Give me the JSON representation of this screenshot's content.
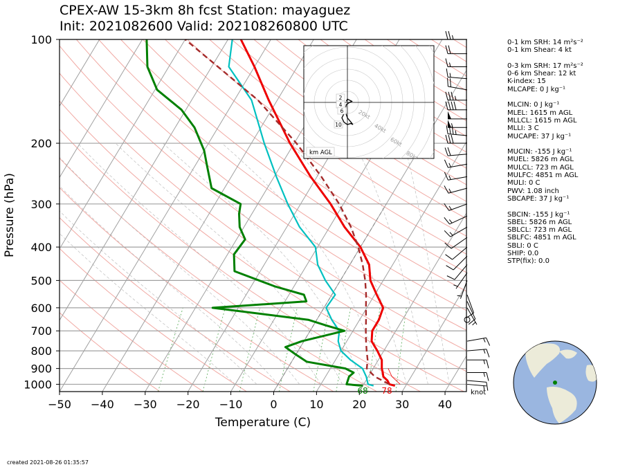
{
  "title": {
    "line1": "CPEX-AW 15-3km  8h fcst  Station: mayaguez",
    "line2": "Init: 2021082600  Valid: 202108260800 UTC"
  },
  "created": "created 2021-08-26 01:35:57",
  "stats": [
    "0-1 km SRH: 14 m²s⁻²",
    "0-1 km Shear: 4 kt",
    "",
    "0-3 km SRH: 17 m²s⁻²",
    "0-6 km Shear: 12 kt",
    "K-index: 15",
    "MLCAPE: 0 J kg⁻¹",
    "",
    "MLCIN: 0 J kg⁻¹",
    "MLEL: 1615 m AGL",
    "MLLCL: 1615 m AGL",
    "MLLI: 3 C",
    "MUCAPE: 37 J kg⁻¹",
    "",
    "MUCIN: -155 J kg⁻¹",
    "MUEL: 5826 m AGL",
    "MULCL: 723 m AGL",
    "MULFC: 4851 m AGL",
    "MULI: 0 C",
    "PWV: 1.08 inch",
    "SBCAPE: 37 J kg⁻¹",
    "",
    "SBCIN: -155 J kg⁻¹",
    "SBEL: 5826 m AGL",
    "SBLCL: 723 m AGL",
    "SBLFC: 4851 m AGL",
    "SBLI: 0 C",
    "SHIP: 0.0",
    "STP(fix): 0.0"
  ],
  "chart_data": {
    "type": "line",
    "subtype": "skew-T log-P sounding",
    "xlabel": "Temperature (C)",
    "ylabel": "Pressure (hPa)",
    "xlim": [
      -50,
      45
    ],
    "ylim": [
      1050,
      100
    ],
    "y_scale": "log",
    "xticks": [
      -50,
      -40,
      -30,
      -20,
      -10,
      0,
      10,
      20,
      30,
      40
    ],
    "yticks": [
      100,
      200,
      300,
      400,
      500,
      600,
      700,
      800,
      900,
      1000
    ],
    "grid": true,
    "surface_labels": {
      "dewpoint": "68",
      "temperature": "78"
    },
    "wind_unit_label": "knot",
    "colors": {
      "temperature": "#ee0000",
      "dewpoint": "#008000",
      "virtual": "#00c0c0",
      "parcel": "#a52a2a"
    },
    "series": [
      {
        "id": "temperature",
        "points": [
          [
            1010,
            27.5
          ],
          [
            1000,
            26.0
          ],
          [
            975,
            25.0
          ],
          [
            950,
            23.5
          ],
          [
            925,
            22.8
          ],
          [
            900,
            22.0
          ],
          [
            850,
            20.8
          ],
          [
            800,
            18.5
          ],
          [
            750,
            15.8
          ],
          [
            700,
            14.5
          ],
          [
            650,
            14.5
          ],
          [
            600,
            13.8
          ],
          [
            550,
            10.5
          ],
          [
            500,
            7.0
          ],
          [
            450,
            4.5
          ],
          [
            400,
            0.0
          ],
          [
            350,
            -6.5
          ],
          [
            300,
            -13.0
          ],
          [
            250,
            -21.5
          ],
          [
            200,
            -31.0
          ],
          [
            150,
            -42.0
          ],
          [
            120,
            -50.0
          ],
          [
            100,
            -57.0
          ]
        ]
      },
      {
        "id": "virtual_temperature",
        "points": [
          [
            1010,
            22.5
          ],
          [
            1000,
            21.0
          ],
          [
            950,
            19.5
          ],
          [
            900,
            17.5
          ],
          [
            850,
            13.5
          ],
          [
            800,
            10.0
          ],
          [
            750,
            8.0
          ],
          [
            700,
            6.8
          ],
          [
            650,
            3.5
          ],
          [
            600,
            0.5
          ],
          [
            550,
            0.8
          ],
          [
            500,
            -3.5
          ],
          [
            450,
            -7.5
          ],
          [
            400,
            -10.5
          ],
          [
            350,
            -17.0
          ],
          [
            300,
            -23.0
          ],
          [
            250,
            -29.5
          ],
          [
            200,
            -37.0
          ],
          [
            150,
            -46.0
          ],
          [
            120,
            -56.0
          ],
          [
            100,
            -59.0
          ]
        ]
      },
      {
        "id": "dewpoint",
        "points": [
          [
            1010,
            20.0
          ],
          [
            1000,
            16.0
          ],
          [
            950,
            15.5
          ],
          [
            925,
            16.0
          ],
          [
            900,
            13.5
          ],
          [
            860,
            3.5
          ],
          [
            820,
            0.0
          ],
          [
            780,
            -3.5
          ],
          [
            750,
            -0.5
          ],
          [
            700,
            8.0
          ],
          [
            675,
            3.0
          ],
          [
            650,
            -2.0
          ],
          [
            600,
            -26.0
          ],
          [
            575,
            -5.0
          ],
          [
            550,
            -6.5
          ],
          [
            520,
            -14.5
          ],
          [
            470,
            -26.0
          ],
          [
            420,
            -28.5
          ],
          [
            380,
            -28.0
          ],
          [
            350,
            -31.0
          ],
          [
            320,
            -33.0
          ],
          [
            300,
            -34.0
          ],
          [
            270,
            -43.0
          ],
          [
            230,
            -47.5
          ],
          [
            210,
            -50.0
          ],
          [
            180,
            -55.5
          ],
          [
            160,
            -61.0
          ],
          [
            140,
            -69.5
          ],
          [
            120,
            -75.0
          ],
          [
            100,
            -79.0
          ]
        ]
      },
      {
        "id": "parcel",
        "points": [
          [
            1000,
            26.0
          ],
          [
            950,
            21.5
          ],
          [
            900,
            18.5
          ],
          [
            850,
            17.5
          ],
          [
            800,
            16.0
          ],
          [
            750,
            14.5
          ],
          [
            700,
            13.0
          ],
          [
            650,
            11.5
          ],
          [
            600,
            9.8
          ],
          [
            550,
            8.0
          ],
          [
            500,
            5.8
          ],
          [
            450,
            3.0
          ],
          [
            400,
            -0.5
          ],
          [
            350,
            -5.0
          ],
          [
            300,
            -11.0
          ],
          [
            250,
            -19.0
          ],
          [
            200,
            -29.5
          ],
          [
            150,
            -44.5
          ],
          [
            100,
            -70.0
          ]
        ]
      }
    ],
    "wind_barbs": [
      {
        "p": 100,
        "speed": 25,
        "dir": 270
      },
      {
        "p": 110,
        "speed": 20,
        "dir": 270
      },
      {
        "p": 120,
        "speed": 15,
        "dir": 270
      },
      {
        "p": 130,
        "speed": 15,
        "dir": 275
      },
      {
        "p": 140,
        "speed": 20,
        "dir": 280
      },
      {
        "p": 150,
        "speed": 35,
        "dir": 270
      },
      {
        "p": 160,
        "speed": 40,
        "dir": 270
      },
      {
        "p": 170,
        "speed": 50,
        "dir": 270
      },
      {
        "p": 180,
        "speed": 55,
        "dir": 270
      },
      {
        "p": 190,
        "speed": 35,
        "dir": 275
      },
      {
        "p": 200,
        "speed": 30,
        "dir": 270
      },
      {
        "p": 215,
        "speed": 20,
        "dir": 265
      },
      {
        "p": 230,
        "speed": 15,
        "dir": 260
      },
      {
        "p": 250,
        "speed": 15,
        "dir": 260
      },
      {
        "p": 270,
        "speed": 15,
        "dir": 255
      },
      {
        "p": 300,
        "speed": 15,
        "dir": 250
      },
      {
        "p": 325,
        "speed": 15,
        "dir": 245
      },
      {
        "p": 350,
        "speed": 15,
        "dir": 240
      },
      {
        "p": 375,
        "speed": 10,
        "dir": 235
      },
      {
        "p": 400,
        "speed": 10,
        "dir": 230
      },
      {
        "p": 425,
        "speed": 10,
        "dir": 225
      },
      {
        "p": 450,
        "speed": 10,
        "dir": 220
      },
      {
        "p": 475,
        "speed": 5,
        "dir": 215
      },
      {
        "p": 500,
        "speed": 5,
        "dir": 200
      },
      {
        "p": 550,
        "speed": 10,
        "dir": 160
      },
      {
        "p": 575,
        "speed": 10,
        "dir": 155
      },
      {
        "p": 600,
        "speed": 5,
        "dir": 150
      },
      {
        "p": 650,
        "speed": 0,
        "dir": 0
      },
      {
        "p": 750,
        "speed": 15,
        "dir": 80
      },
      {
        "p": 800,
        "speed": 15,
        "dir": 85
      },
      {
        "p": 850,
        "speed": 15,
        "dir": 90
      },
      {
        "p": 925,
        "speed": 15,
        "dir": 90
      },
      {
        "p": 975,
        "speed": 10,
        "dir": 95
      },
      {
        "p": 1000,
        "speed": 5,
        "dir": 95
      }
    ],
    "hodograph": {
      "ring_labels": [
        "20kt",
        "40kt",
        "60kt",
        "80kt"
      ],
      "height_labels": [
        "2",
        "4",
        "6",
        "10"
      ],
      "legend": "km AGL",
      "points": [
        [
          -5,
          0
        ],
        [
          -8,
          -4
        ],
        [
          -6,
          -7
        ],
        [
          -3,
          -10
        ],
        [
          -5,
          -14
        ],
        [
          -3,
          -18
        ],
        [
          0,
          -20
        ],
        [
          3,
          -19
        ],
        [
          5,
          -20
        ],
        [
          0,
          -14
        ],
        [
          -2,
          -8
        ],
        [
          -1,
          -2
        ],
        [
          2,
          0
        ],
        [
          4,
          1
        ],
        [
          2,
          2
        ],
        [
          0,
          3
        ],
        [
          -1,
          1
        ]
      ]
    }
  },
  "globe": {
    "ocean_color": "#9ab6e0",
    "land_color": "#ecebd9",
    "marker_color": "#008000"
  }
}
